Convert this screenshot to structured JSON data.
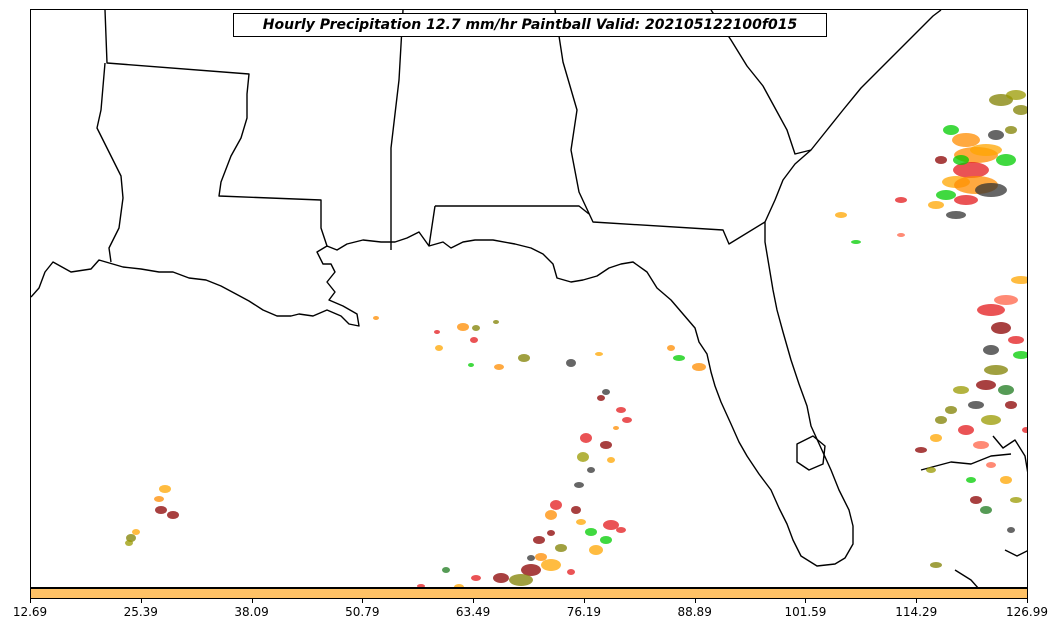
{
  "title": "Hourly Precipitation 12.7 mm/hr Paintball Valid: 202105122100f015",
  "colorbar": {
    "color": "#ffc266",
    "ticks": [
      "12.69",
      "25.39",
      "38.09",
      "50.79",
      "63.49",
      "76.19",
      "88.89",
      "101.59",
      "114.29",
      "126.99"
    ]
  },
  "member_colors": [
    "#8b0000",
    "#e31a1c",
    "#ff8c00",
    "#ffa500",
    "#808000",
    "#999900",
    "#00cc00",
    "#1e7a1e",
    "#333333",
    "#ff6347"
  ]
}
